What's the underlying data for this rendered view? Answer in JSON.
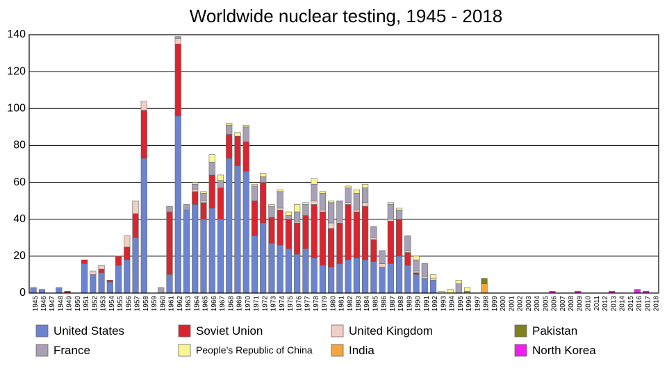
{
  "chart_data": {
    "type": "stacked-bar",
    "title": "Worldwide nuclear testing, 1945 - 2018",
    "categories": [
      "1945",
      "1946",
      "1947",
      "1948",
      "1949",
      "1950",
      "1951",
      "1952",
      "1953",
      "1954",
      "1955",
      "1956",
      "1957",
      "1958",
      "1959",
      "1960",
      "1961",
      "1962",
      "1963",
      "1964",
      "1965",
      "1966",
      "1967",
      "1968",
      "1969",
      "1970",
      "1971",
      "1972",
      "1973",
      "1974",
      "1975",
      "1976",
      "1977",
      "1978",
      "1979",
      "1980",
      "1981",
      "1982",
      "1983",
      "1984",
      "1985",
      "1986",
      "1987",
      "1988",
      "1989",
      "1990",
      "1991",
      "1992",
      "1993",
      "1994",
      "1995",
      "1996",
      "1997",
      "1998",
      "1999",
      "2000",
      "2001",
      "2002",
      "2003",
      "2004",
      "2005",
      "2006",
      "2007",
      "2008",
      "2009",
      "2010",
      "2011",
      "2012",
      "2013",
      "2014",
      "2015",
      "2016",
      "2017",
      "2018"
    ],
    "series": [
      {
        "name": "United States",
        "color": "#6a84d0",
        "values": [
          3,
          2,
          0,
          3,
          0,
          0,
          16,
          10,
          11,
          6,
          15,
          18,
          30,
          73,
          0,
          0,
          10,
          96,
          45,
          48,
          40,
          46,
          40,
          73,
          69,
          66,
          31,
          38,
          27,
          26,
          24,
          21,
          24,
          19,
          15,
          14,
          16,
          18,
          19,
          18,
          17,
          14,
          16,
          20,
          15,
          10,
          8,
          7,
          0,
          0,
          0,
          0,
          0,
          0,
          0,
          0,
          0,
          0,
          0,
          0,
          0,
          0,
          0,
          0,
          0,
          0,
          0,
          0,
          0,
          0,
          0,
          0,
          0,
          0
        ]
      },
      {
        "name": "Soviet Union",
        "color": "#d9252f",
        "values": [
          0,
          0,
          0,
          0,
          1,
          0,
          2,
          0,
          2,
          1,
          5,
          7,
          13,
          26,
          0,
          0,
          34,
          39,
          0,
          7,
          9,
          18,
          17,
          13,
          16,
          16,
          19,
          22,
          14,
          19,
          16,
          17,
          18,
          29,
          29,
          21,
          22,
          30,
          25,
          29,
          12,
          0,
          23,
          20,
          7,
          1,
          0,
          0,
          0,
          0,
          0,
          0,
          0,
          0,
          0,
          0,
          0,
          0,
          0,
          0,
          0,
          0,
          0,
          0,
          0,
          0,
          0,
          0,
          0,
          0,
          0,
          0,
          0,
          0
        ]
      },
      {
        "name": "United Kingdom",
        "color": "#f2cfc5",
        "values": [
          0,
          0,
          0,
          0,
          0,
          0,
          0,
          2,
          2,
          0,
          0,
          6,
          7,
          5,
          0,
          0,
          0,
          3,
          0,
          1,
          1,
          0,
          0,
          0,
          0,
          0,
          0,
          0,
          0,
          1,
          0,
          1,
          0,
          2,
          1,
          3,
          1,
          1,
          1,
          2,
          1,
          2,
          1,
          0,
          1,
          1,
          1,
          1,
          0,
          0,
          0,
          0,
          0,
          0,
          0,
          0,
          0,
          0,
          0,
          0,
          0,
          0,
          0,
          0,
          0,
          0,
          0,
          0,
          0,
          0,
          0,
          0,
          0,
          0
        ]
      },
      {
        "name": "France",
        "color": "#a8a0b4",
        "values": [
          0,
          0,
          0,
          0,
          0,
          0,
          0,
          0,
          0,
          0,
          0,
          0,
          0,
          0,
          0,
          3,
          3,
          1,
          3,
          3,
          4,
          7,
          4,
          5,
          0,
          8,
          8,
          3,
          6,
          9,
          2,
          5,
          6,
          9,
          9,
          11,
          11,
          8,
          9,
          8,
          6,
          7,
          8,
          5,
          8,
          6,
          7,
          0,
          0,
          0,
          5,
          1,
          0,
          0,
          0,
          0,
          0,
          0,
          0,
          0,
          0,
          0,
          0,
          0,
          0,
          0,
          0,
          0,
          0,
          0,
          0,
          0,
          0,
          0
        ]
      },
      {
        "name": "People's Republic of China",
        "color": "#fbf590",
        "values": [
          0,
          0,
          0,
          0,
          0,
          0,
          0,
          0,
          0,
          0,
          0,
          0,
          0,
          0,
          0,
          0,
          0,
          0,
          0,
          1,
          1,
          4,
          3,
          1,
          2,
          1,
          1,
          2,
          1,
          1,
          2,
          4,
          1,
          3,
          1,
          1,
          0,
          1,
          2,
          2,
          0,
          0,
          1,
          1,
          0,
          2,
          0,
          2,
          1,
          2,
          2,
          2,
          0,
          0,
          0,
          0,
          0,
          0,
          0,
          0,
          0,
          0,
          0,
          0,
          0,
          0,
          0,
          0,
          0,
          0,
          0,
          0,
          0,
          0
        ]
      },
      {
        "name": "India",
        "color": "#f4a640",
        "values": [
          0,
          0,
          0,
          0,
          0,
          0,
          0,
          0,
          0,
          0,
          0,
          0,
          0,
          0,
          0,
          0,
          0,
          0,
          0,
          0,
          0,
          0,
          0,
          0,
          0,
          0,
          0,
          0,
          0,
          0,
          0,
          0,
          0,
          0,
          0,
          0,
          0,
          0,
          0,
          0,
          0,
          0,
          0,
          0,
          0,
          0,
          0,
          0,
          0,
          0,
          0,
          0,
          0,
          5,
          0,
          0,
          0,
          0,
          0,
          0,
          0,
          0,
          0,
          0,
          0,
          0,
          0,
          0,
          0,
          0,
          0,
          0,
          0,
          0
        ]
      },
      {
        "name": "Pakistan",
        "color": "#808020",
        "values": [
          0,
          0,
          0,
          0,
          0,
          0,
          0,
          0,
          0,
          0,
          0,
          0,
          0,
          0,
          0,
          0,
          0,
          0,
          0,
          0,
          0,
          0,
          0,
          0,
          0,
          0,
          0,
          0,
          0,
          0,
          0,
          0,
          0,
          0,
          0,
          0,
          0,
          0,
          0,
          0,
          0,
          0,
          0,
          0,
          0,
          0,
          0,
          0,
          0,
          0,
          0,
          0,
          0,
          3,
          0,
          0,
          0,
          0,
          0,
          0,
          0,
          0,
          0,
          0,
          0,
          0,
          0,
          0,
          0,
          0,
          0,
          0,
          0,
          0
        ]
      },
      {
        "name": "North Korea",
        "color": "#f01ef0",
        "values": [
          0,
          0,
          0,
          0,
          0,
          0,
          0,
          0,
          0,
          0,
          0,
          0,
          0,
          0,
          0,
          0,
          0,
          0,
          0,
          0,
          0,
          0,
          0,
          0,
          0,
          0,
          0,
          0,
          0,
          0,
          0,
          0,
          0,
          0,
          0,
          0,
          0,
          0,
          0,
          0,
          0,
          0,
          0,
          0,
          0,
          0,
          0,
          0,
          0,
          0,
          0,
          0,
          0,
          0,
          0,
          0,
          0,
          0,
          0,
          0,
          0,
          1,
          0,
          0,
          1,
          0,
          0,
          0,
          1,
          0,
          0,
          2,
          1,
          0
        ]
      }
    ],
    "ylim": [
      0,
      140
    ],
    "yticks": [
      0,
      20,
      40,
      60,
      80,
      100,
      120,
      140
    ],
    "grid": true
  }
}
